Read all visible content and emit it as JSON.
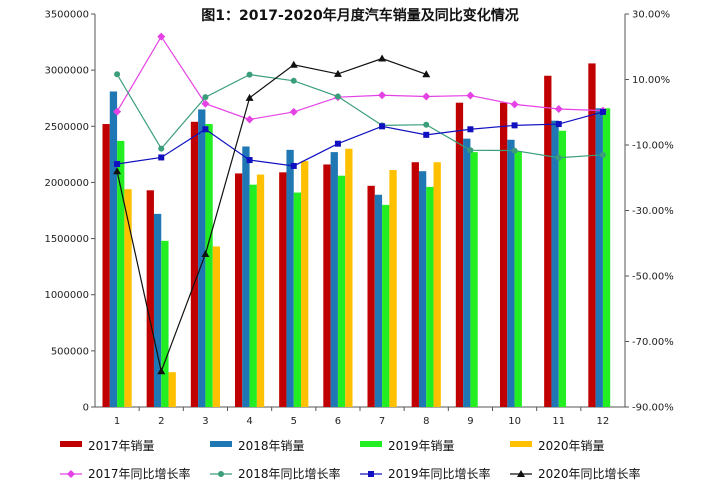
{
  "chart_data": {
    "type": "bar",
    "title": "图1：2017-2020年月度汽车销量及同比变化情况",
    "categories": [
      "1",
      "2",
      "3",
      "4",
      "5",
      "6",
      "7",
      "8",
      "9",
      "10",
      "11",
      "12"
    ],
    "y_left": {
      "min": 0,
      "max": 3500000,
      "ticks": [
        "0",
        "500000",
        "1000000",
        "1500000",
        "2000000",
        "2500000",
        "3000000",
        "3500000"
      ]
    },
    "y_right": {
      "min": -90,
      "max": 30,
      "ticks": [
        "-90.00%",
        "-70.00%",
        "-50.00%",
        "-30.00%",
        "-10.00%",
        "10.00%",
        "30.00%"
      ]
    },
    "bar_series": [
      {
        "name": "2017年销量",
        "color": "#c00000",
        "values": [
          2520000,
          1930000,
          2540000,
          2080000,
          2090000,
          2160000,
          1970000,
          2180000,
          2710000,
          2710000,
          2950000,
          3060000
        ]
      },
      {
        "name": "2018年销量",
        "color": "#1f77b4",
        "values": [
          2810000,
          1720000,
          2650000,
          2320000,
          2290000,
          2270000,
          1890000,
          2100000,
          2390000,
          2380000,
          2550000,
          2660000
        ]
      },
      {
        "name": "2019年销量",
        "color": "#22ee22",
        "values": [
          2370000,
          1480000,
          2520000,
          1980000,
          1910000,
          2060000,
          1800000,
          1960000,
          2270000,
          2280000,
          2460000,
          2660000
        ]
      },
      {
        "name": "2020年销量",
        "color": "#ffc000",
        "values": [
          1940000,
          310000,
          1430000,
          2070000,
          2190000,
          2300000,
          2110000,
          2180000,
          null,
          null,
          null,
          null
        ]
      }
    ],
    "line_series": [
      {
        "name": "2017年同比增长率",
        "color": "#e542e5",
        "marker": "diamond",
        "values": [
          0.2,
          23.1,
          2.6,
          -2.2,
          0.1,
          4.6,
          5.2,
          4.8,
          5.1,
          2.4,
          1.0,
          0.5
        ]
      },
      {
        "name": "2018年同比增长率",
        "color": "#3b9e7a",
        "marker": "circle",
        "values": [
          11.6,
          -11.1,
          4.6,
          11.5,
          9.6,
          4.8,
          -4.0,
          -3.8,
          -11.6,
          -11.7,
          -13.9,
          -13.0
        ]
      },
      {
        "name": "2019年同比增长率",
        "color": "#1010c0",
        "marker": "square",
        "values": [
          -15.8,
          -13.8,
          -5.2,
          -14.6,
          -16.4,
          -9.6,
          -4.3,
          -6.9,
          -5.2,
          -4.0,
          -3.6,
          0.1
        ]
      },
      {
        "name": "2020年同比增长率",
        "color": "#111111",
        "marker": "triangle",
        "values": [
          -18.0,
          -79.1,
          -43.3,
          4.4,
          14.5,
          11.7,
          16.4,
          11.6,
          null,
          null,
          null,
          null
        ]
      }
    ]
  }
}
